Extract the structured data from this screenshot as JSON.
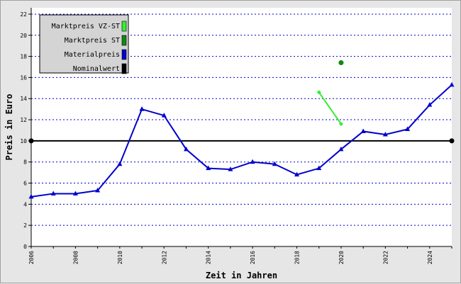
{
  "chart_data": {
    "type": "line",
    "title": "",
    "xlabel": "Zeit in Jahren",
    "ylabel": "Preis in Euro",
    "xlim": [
      2006,
      2025
    ],
    "ylim": [
      0,
      22.6
    ],
    "y_ticks": [
      0,
      2,
      4,
      6,
      8,
      10,
      12,
      14,
      16,
      18,
      20,
      22
    ],
    "x_ticks": [
      2006,
      2008,
      2010,
      2012,
      2014,
      2016,
      2018,
      2020,
      2022,
      2024
    ],
    "grid": "horizontal dotted",
    "legend_position": "top-left",
    "series": [
      {
        "name": "Materialpreis",
        "color": "#0000cc",
        "marker": "triangle",
        "x": [
          2006,
          2007,
          2008,
          2009,
          2010,
          2011,
          2012,
          2013,
          2014,
          2015,
          2016,
          2017,
          2018,
          2019,
          2020,
          2021,
          2022,
          2023,
          2024,
          2025
        ],
        "values": [
          4.7,
          5.0,
          5.0,
          5.3,
          7.8,
          13.0,
          12.4,
          9.2,
          7.4,
          7.3,
          8.0,
          7.8,
          6.8,
          7.4,
          9.2,
          10.9,
          10.6,
          11.1,
          13.4,
          15.3
        ]
      },
      {
        "name": "Marktpreis VZ-ST",
        "color": "#33ee33",
        "marker": "diamond",
        "x": [
          2019,
          2020
        ],
        "values": [
          14.6,
          11.6
        ]
      },
      {
        "name": "Marktpreis ST",
        "color": "#118811",
        "marker": "circle",
        "x": [
          2020
        ],
        "values": [
          17.4
        ]
      },
      {
        "name": "Nominalwert",
        "color": "#000000",
        "marker": "circle",
        "x": [
          2006,
          2025
        ],
        "values": [
          10,
          10
        ]
      }
    ]
  }
}
